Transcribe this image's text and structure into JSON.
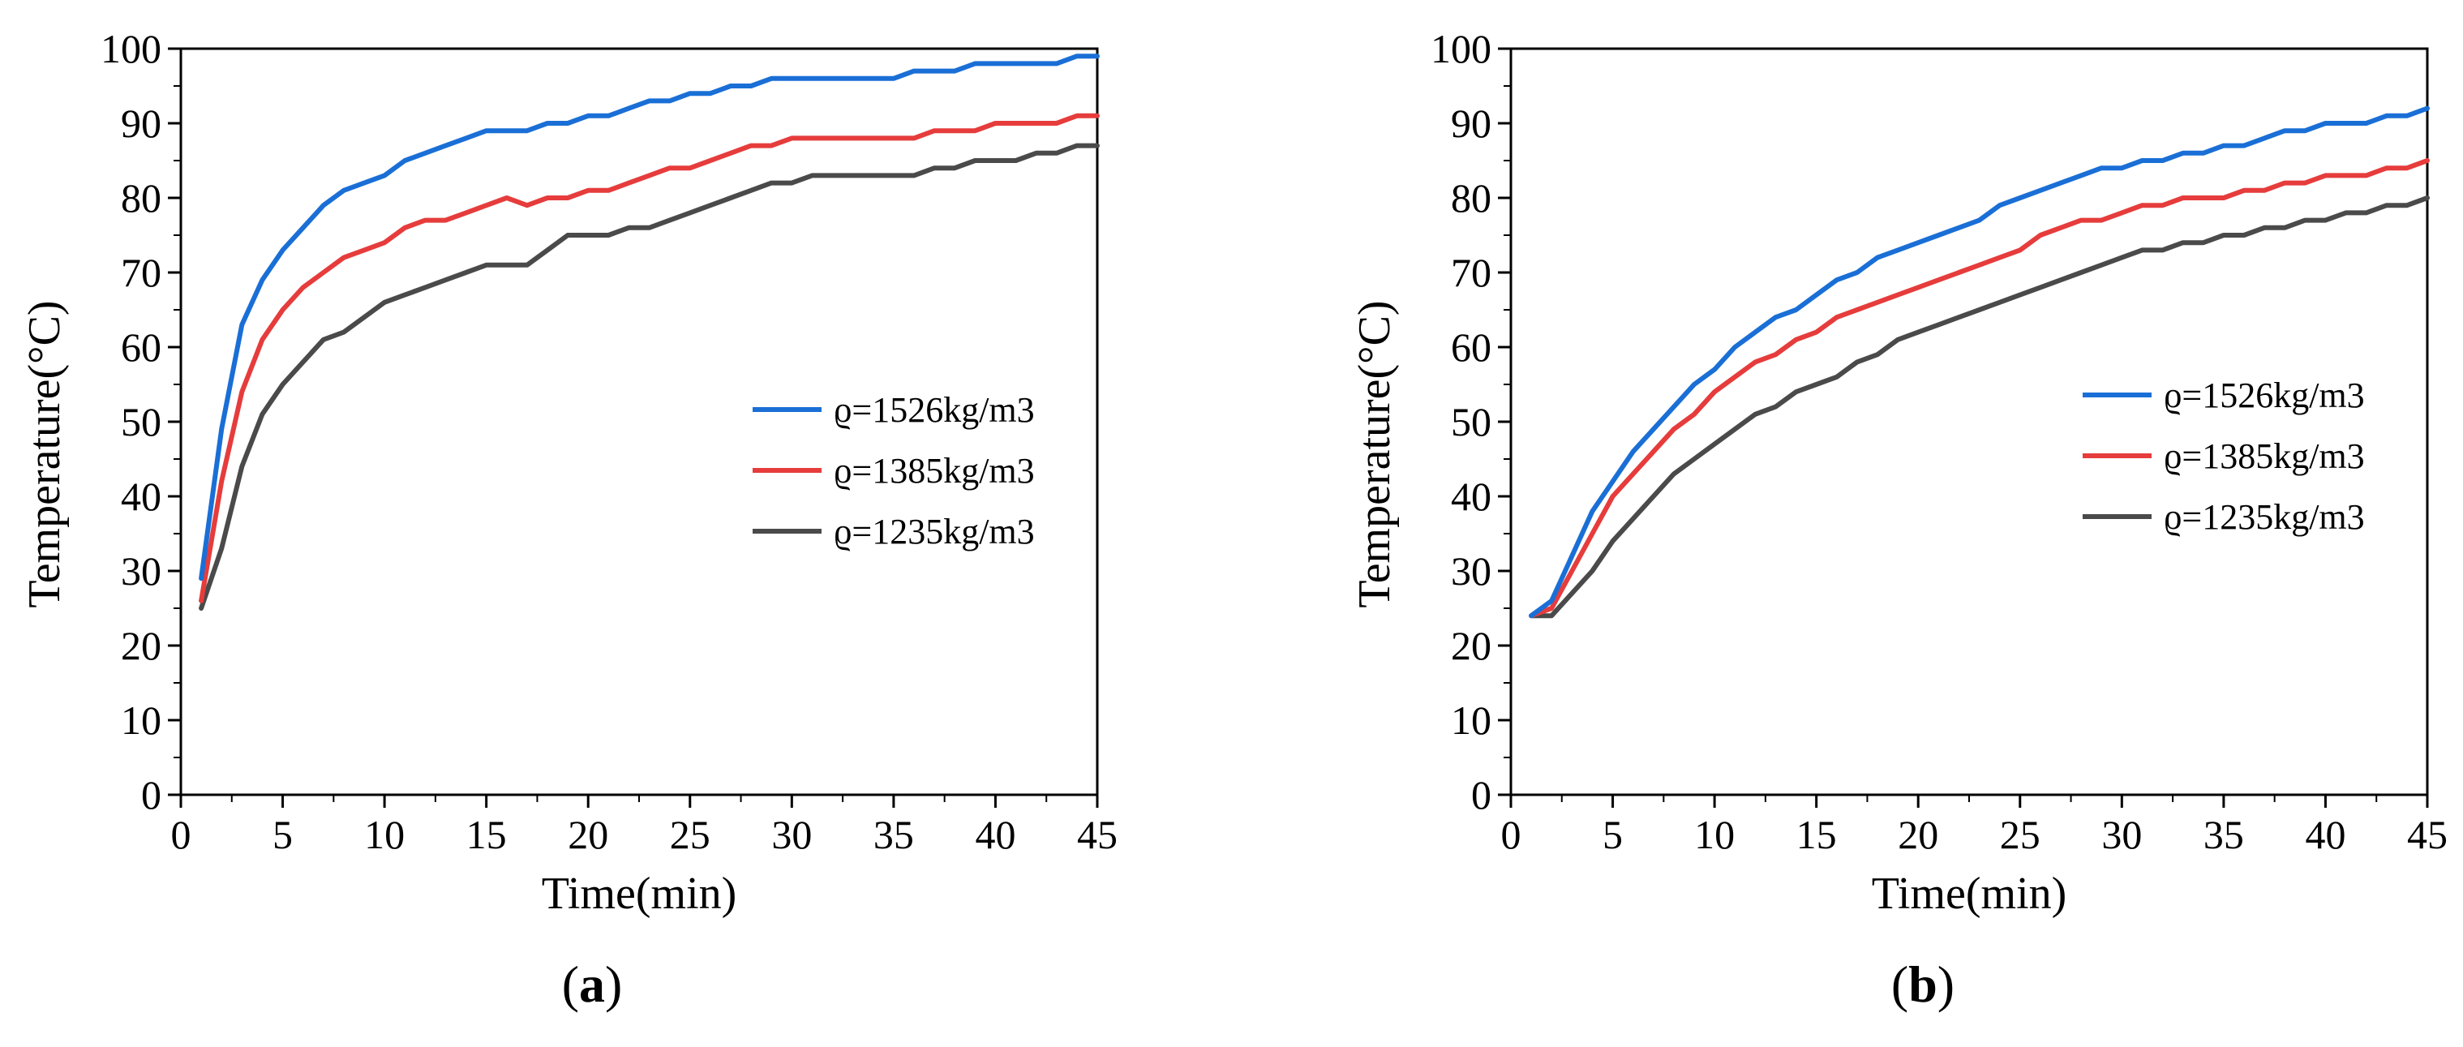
{
  "chart_data": [
    {
      "type": "line",
      "panel_label": "a",
      "xlabel": "Time(min)",
      "ylabel": "Temperature(°C)",
      "xlim": [
        0,
        45
      ],
      "ylim": [
        0,
        100
      ],
      "xticks": [
        "0",
        "5",
        "10",
        "15",
        "20",
        "25",
        "30",
        "35",
        "40",
        "45"
      ],
      "yticks": [
        "0",
        "10",
        "20",
        "30",
        "40",
        "50",
        "60",
        "70",
        "80",
        "90",
        "100"
      ],
      "grid": false,
      "legend_position": "center-right",
      "x": [
        1,
        2,
        3,
        4,
        5,
        6,
        7,
        8,
        9,
        10,
        11,
        12,
        13,
        14,
        15,
        16,
        17,
        18,
        19,
        20,
        21,
        22,
        23,
        24,
        25,
        26,
        27,
        28,
        29,
        30,
        31,
        32,
        33,
        34,
        35,
        36,
        37,
        38,
        39,
        40,
        41,
        42,
        43,
        44,
        45
      ],
      "series": [
        {
          "name": "ϱ=1526kg/m3",
          "color": "#1a6fd6",
          "values": [
            29,
            49,
            63,
            69,
            73,
            76,
            79,
            81,
            82,
            83,
            85,
            86,
            87,
            88,
            89,
            89,
            89,
            90,
            90,
            91,
            91,
            92,
            93,
            93,
            94,
            94,
            95,
            95,
            96,
            96,
            96,
            96,
            96,
            96,
            96,
            97,
            97,
            97,
            98,
            98,
            98,
            98,
            98,
            99,
            99
          ]
        },
        {
          "name": "ϱ=1385kg/m3",
          "color": "#e63c3c",
          "values": [
            26,
            42,
            54,
            61,
            65,
            68,
            70,
            72,
            73,
            74,
            76,
            77,
            77,
            78,
            79,
            80,
            79,
            80,
            80,
            81,
            81,
            82,
            83,
            84,
            84,
            85,
            86,
            87,
            87,
            88,
            88,
            88,
            88,
            88,
            88,
            88,
            89,
            89,
            89,
            90,
            90,
            90,
            90,
            91,
            91
          ]
        },
        {
          "name": "ϱ=1235kg/m3",
          "color": "#4a4a4a",
          "values": [
            25,
            33,
            44,
            51,
            55,
            58,
            61,
            62,
            64,
            66,
            67,
            68,
            69,
            70,
            71,
            71,
            71,
            73,
            75,
            75,
            75,
            76,
            76,
            77,
            78,
            79,
            80,
            81,
            82,
            82,
            83,
            83,
            83,
            83,
            83,
            83,
            84,
            84,
            85,
            85,
            85,
            86,
            86,
            87,
            87
          ]
        }
      ]
    },
    {
      "type": "line",
      "panel_label": "b",
      "xlabel": "Time(min)",
      "ylabel": "Temperature(°C)",
      "xlim": [
        0,
        45
      ],
      "ylim": [
        0,
        100
      ],
      "xticks": [
        "0",
        "5",
        "10",
        "15",
        "20",
        "25",
        "30",
        "35",
        "40",
        "45"
      ],
      "yticks": [
        "0",
        "10",
        "20",
        "30",
        "40",
        "50",
        "60",
        "70",
        "80",
        "90",
        "100"
      ],
      "grid": false,
      "legend_position": "center-right",
      "x": [
        1,
        2,
        3,
        4,
        5,
        6,
        7,
        8,
        9,
        10,
        11,
        12,
        13,
        14,
        15,
        16,
        17,
        18,
        19,
        20,
        21,
        22,
        23,
        24,
        25,
        26,
        27,
        28,
        29,
        30,
        31,
        32,
        33,
        34,
        35,
        36,
        37,
        38,
        39,
        40,
        41,
        42,
        43,
        44,
        45
      ],
      "series": [
        {
          "name": "ϱ=1526kg/m3",
          "color": "#1a6fd6",
          "values": [
            24,
            26,
            32,
            38,
            42,
            46,
            49,
            52,
            55,
            57,
            60,
            62,
            64,
            65,
            67,
            69,
            70,
            72,
            73,
            74,
            75,
            76,
            77,
            79,
            80,
            81,
            82,
            83,
            84,
            84,
            85,
            85,
            86,
            86,
            87,
            87,
            88,
            89,
            89,
            90,
            90,
            90,
            91,
            91,
            92
          ]
        },
        {
          "name": "ϱ=1385kg/m3",
          "color": "#e63c3c",
          "values": [
            24,
            25,
            30,
            35,
            40,
            43,
            46,
            49,
            51,
            54,
            56,
            58,
            59,
            61,
            62,
            64,
            65,
            66,
            67,
            68,
            69,
            70,
            71,
            72,
            73,
            75,
            76,
            77,
            77,
            78,
            79,
            79,
            80,
            80,
            80,
            81,
            81,
            82,
            82,
            83,
            83,
            83,
            84,
            84,
            85
          ]
        },
        {
          "name": "ϱ=1235kg/m3",
          "color": "#4a4a4a",
          "values": [
            24,
            24,
            27,
            30,
            34,
            37,
            40,
            43,
            45,
            47,
            49,
            51,
            52,
            54,
            55,
            56,
            58,
            59,
            61,
            62,
            63,
            64,
            65,
            66,
            67,
            68,
            69,
            70,
            71,
            72,
            73,
            73,
            74,
            74,
            75,
            75,
            76,
            76,
            77,
            77,
            78,
            78,
            79,
            79,
            80
          ]
        }
      ]
    }
  ]
}
